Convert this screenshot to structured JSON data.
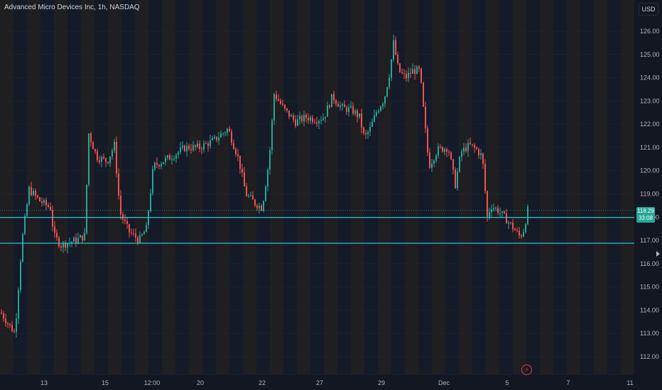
{
  "header": {
    "title": "Advanced Micro Devices Inc, 1h, NASDAQ",
    "currency": "USD"
  },
  "colors": {
    "background": "#131722",
    "up": "#26a69a",
    "down": "#ef5350",
    "level_line": "#26c6da",
    "band_orange": "#2a2420",
    "band_blue": "#161d2e",
    "axis_text": "#b2b5be"
  },
  "chart_data": {
    "type": "candlestick",
    "title": "Advanced Micro Devices Inc, 1h, NASDAQ",
    "y_axis": {
      "ticks": [
        112.0,
        113.0,
        114.0,
        115.0,
        116.0,
        117.0,
        118.0,
        119.0,
        120.0,
        121.0,
        122.0,
        123.0,
        124.0,
        125.0,
        126.0
      ],
      "labels": [
        "112.00",
        "113.00",
        "114.00",
        "115.00",
        "116.00",
        "117.00",
        "118.00",
        "119.00",
        "120.00",
        "121.00",
        "122.00",
        "123.00",
        "124.00",
        "125.00",
        "126.00"
      ],
      "ylim": [
        111.6,
        126.6
      ]
    },
    "x_axis": {
      "labels": [
        "13",
        "15",
        "12:00",
        "20",
        "22",
        "27",
        "29",
        "Dec",
        "5",
        "7",
        "11"
      ]
    },
    "current_price": {
      "price": "118.29",
      "countdown": "33:08",
      "value": 118.29
    },
    "horizontal_levels": [
      117.99,
      116.88
    ],
    "close_path": [
      [
        0,
        113.9
      ],
      [
        20,
        113.0
      ],
      [
        30,
        117.0
      ],
      [
        40,
        119.2
      ],
      [
        55,
        118.7
      ],
      [
        70,
        118.4
      ],
      [
        75,
        117.2
      ],
      [
        85,
        116.8
      ],
      [
        105,
        117.0
      ],
      [
        118,
        117.2
      ],
      [
        124,
        121.6
      ],
      [
        135,
        120.6
      ],
      [
        150,
        120.4
      ],
      [
        160,
        121.1
      ],
      [
        168,
        118.2
      ],
      [
        180,
        117.4
      ],
      [
        195,
        117.0
      ],
      [
        205,
        117.5
      ],
      [
        215,
        120.2
      ],
      [
        240,
        120.6
      ],
      [
        260,
        121.0
      ],
      [
        280,
        121.0
      ],
      [
        300,
        121.3
      ],
      [
        320,
        121.8
      ],
      [
        335,
        120.5
      ],
      [
        345,
        119.0
      ],
      [
        358,
        118.6
      ],
      [
        368,
        118.4
      ],
      [
        378,
        120.5
      ],
      [
        385,
        123.3
      ],
      [
        400,
        122.6
      ],
      [
        415,
        122.1
      ],
      [
        430,
        122.3
      ],
      [
        445,
        122.2
      ],
      [
        455,
        122.3
      ],
      [
        467,
        123.2
      ],
      [
        480,
        122.7
      ],
      [
        495,
        122.6
      ],
      [
        505,
        122.3
      ],
      [
        512,
        121.4
      ],
      [
        520,
        121.8
      ],
      [
        530,
        122.6
      ],
      [
        540,
        123.1
      ],
      [
        548,
        124.3
      ],
      [
        553,
        125.5
      ],
      [
        560,
        124.3
      ],
      [
        570,
        124.0
      ],
      [
        580,
        124.3
      ],
      [
        590,
        124.3
      ],
      [
        597,
        122.0
      ],
      [
        603,
        120.2
      ],
      [
        615,
        120.9
      ],
      [
        630,
        121.0
      ],
      [
        640,
        119.4
      ],
      [
        648,
        120.8
      ],
      [
        660,
        121.1
      ],
      [
        670,
        120.9
      ],
      [
        678,
        120.6
      ],
      [
        685,
        118.0
      ],
      [
        690,
        118.5
      ],
      [
        700,
        118.3
      ],
      [
        712,
        117.9
      ],
      [
        720,
        117.6
      ],
      [
        730,
        117.2
      ],
      [
        735,
        117.3
      ],
      [
        742,
        118.29
      ]
    ]
  }
}
